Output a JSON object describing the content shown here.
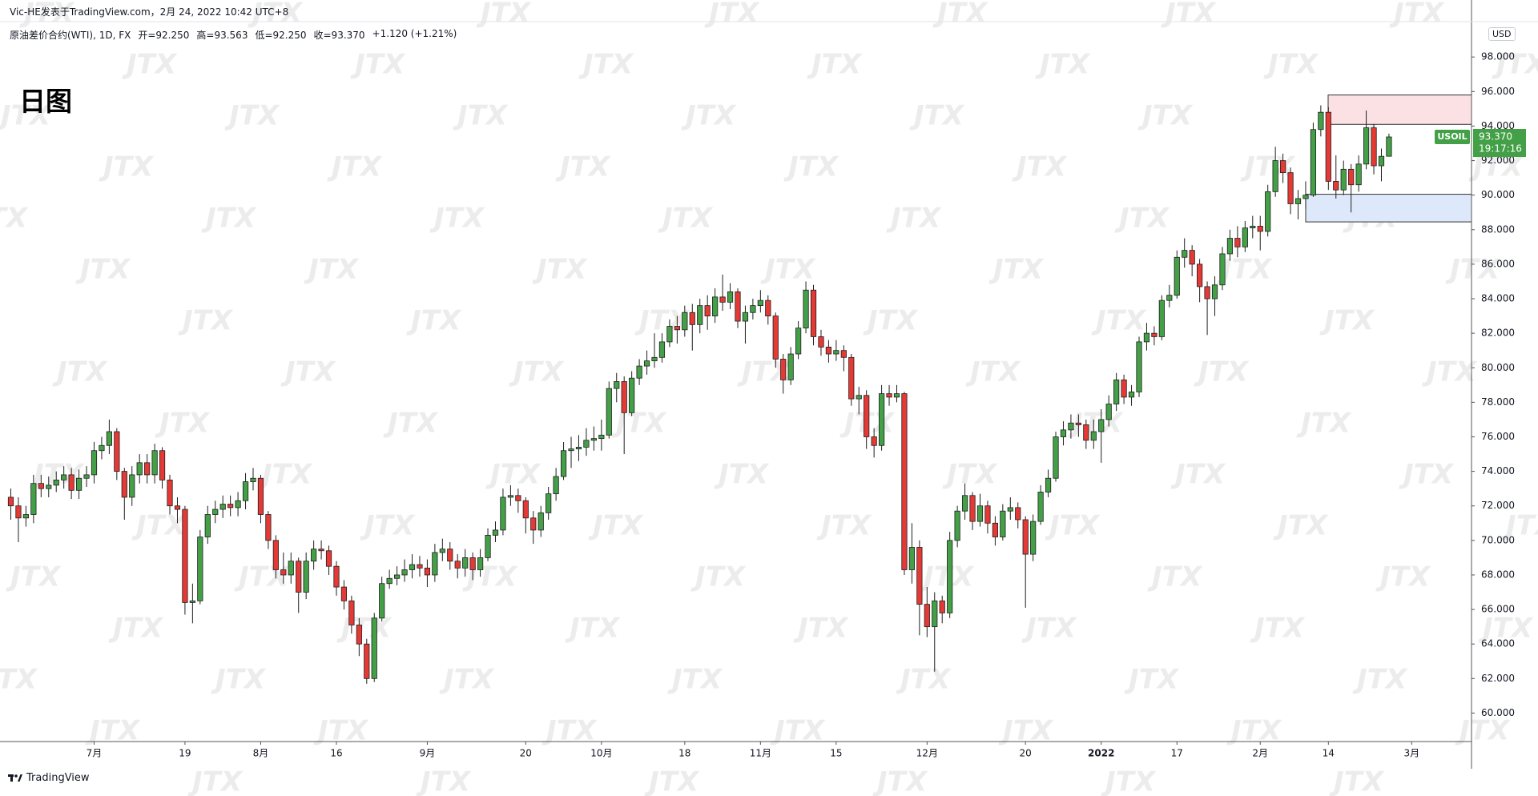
{
  "header": {
    "author_line": "Vic-HE发表于TradingView.com，2月 24, 2022 10:42 UTC+8",
    "symbol": "原油差价合约(WTI), 1D, FX",
    "ohlc_legend": [
      "开=92.250",
      "高=93.563",
      "低=92.250",
      "收=93.370",
      "+1.120 (+1.21%)"
    ]
  },
  "chart_data": {
    "type": "candlestick",
    "title": "日图",
    "currency": "USD",
    "watermark": "JTX",
    "symbol_tag": "USOIL",
    "last_price_label": "93.370",
    "countdown": "19:17:16",
    "up_color": "#43a047",
    "down_color": "#e53935",
    "wick_color": "#1f1f1f",
    "grid": false,
    "ylim": [
      58.35,
      100.05
    ],
    "yticks": [
      {
        "value": 60,
        "label": "60.000"
      },
      {
        "value": 62,
        "label": "62.000"
      },
      {
        "value": 64,
        "label": "64.000"
      },
      {
        "value": 66,
        "label": "66.000"
      },
      {
        "value": 68,
        "label": "68.000"
      },
      {
        "value": 70,
        "label": "70.000"
      },
      {
        "value": 72,
        "label": "72.000"
      },
      {
        "value": 74,
        "label": "74.000"
      },
      {
        "value": 76,
        "label": "76.000"
      },
      {
        "value": 78,
        "label": "78.000"
      },
      {
        "value": 80,
        "label": "80.000"
      },
      {
        "value": 82,
        "label": "82.000"
      },
      {
        "value": 84,
        "label": "84.000"
      },
      {
        "value": 86,
        "label": "86.000"
      },
      {
        "value": 88,
        "label": "88.000"
      },
      {
        "value": 90,
        "label": "90.000"
      },
      {
        "value": 92,
        "label": "92.000"
      },
      {
        "value": 94,
        "label": "94.000"
      },
      {
        "value": 96,
        "label": "96.000"
      },
      {
        "value": 98,
        "label": "98.000"
      }
    ],
    "zones": [
      {
        "top": 95.8,
        "bottom": 94.1,
        "color": "#fbe1e3"
      },
      {
        "top": 90.05,
        "bottom": 88.45,
        "color": "#dde8fa"
      }
    ],
    "categories": [
      null,
      null,
      null,
      null,
      null,
      null,
      null,
      null,
      null,
      null,
      null,
      "7月",
      null,
      null,
      null,
      null,
      null,
      null,
      null,
      null,
      null,
      null,
      null,
      "19",
      null,
      null,
      null,
      null,
      null,
      null,
      null,
      null,
      null,
      "8月",
      null,
      null,
      null,
      null,
      null,
      null,
      null,
      null,
      null,
      "16",
      null,
      null,
      null,
      null,
      null,
      null,
      null,
      null,
      null,
      null,
      null,
      "9月",
      null,
      null,
      null,
      null,
      null,
      null,
      null,
      null,
      null,
      null,
      null,
      null,
      "20",
      null,
      null,
      null,
      null,
      null,
      null,
      null,
      null,
      null,
      "10月",
      null,
      null,
      null,
      null,
      null,
      null,
      null,
      null,
      null,
      null,
      "18",
      null,
      null,
      null,
      null,
      null,
      null,
      null,
      null,
      null,
      "11月",
      null,
      null,
      null,
      null,
      null,
      null,
      null,
      null,
      null,
      "15",
      null,
      null,
      null,
      null,
      null,
      null,
      null,
      null,
      null,
      null,
      null,
      "12月",
      null,
      null,
      null,
      null,
      null,
      null,
      null,
      null,
      null,
      null,
      null,
      null,
      "20",
      null,
      null,
      null,
      null,
      null,
      null,
      null,
      null,
      null,
      "2022",
      null,
      null,
      null,
      null,
      null,
      null,
      null,
      null,
      null,
      "17",
      null,
      null,
      null,
      null,
      null,
      null,
      null,
      null,
      null,
      null,
      "2月",
      null,
      null,
      null,
      null,
      null,
      null,
      null,
      null,
      "14",
      null,
      null,
      null,
      null,
      null,
      null,
      null,
      null,
      null,
      null,
      "3月"
    ],
    "open": [
      72.5,
      72.0,
      71.3,
      71.5,
      73.3,
      73.0,
      73.2,
      73.5,
      73.8,
      72.9,
      73.6,
      73.8,
      75.2,
      75.5,
      76.3,
      74.0,
      72.5,
      73.8,
      74.5,
      73.8,
      75.2,
      73.5,
      72.0,
      71.8,
      66.4,
      66.5,
      70.2,
      71.5,
      71.8,
      72.1,
      71.9,
      72.3,
      73.4,
      73.6,
      71.5,
      70.0,
      68.3,
      68.0,
      68.8,
      67.0,
      68.8,
      69.5,
      69.4,
      68.5,
      67.3,
      66.5,
      65.1,
      64.0,
      62.0,
      65.5,
      67.5,
      67.8,
      68.0,
      68.3,
      68.6,
      68.4,
      68.0,
      69.3,
      69.5,
      68.8,
      68.4,
      69.0,
      68.3,
      69.0,
      70.3,
      70.6,
      72.5,
      72.6,
      72.3,
      71.3,
      70.6,
      71.6,
      72.7,
      73.7,
      75.2,
      75.3,
      75.4,
      75.8,
      75.9,
      76.1,
      78.8,
      79.2,
      77.4,
      79.4,
      80.1,
      80.4,
      80.6,
      81.5,
      82.4,
      82.2,
      83.2,
      82.5,
      83.6,
      83.0,
      84.1,
      83.8,
      84.4,
      82.7,
      83.2,
      83.6,
      83.9,
      83.0,
      80.5,
      79.3,
      80.8,
      82.3,
      84.5,
      81.8,
      81.2,
      80.8,
      81.0,
      80.6,
      78.2,
      78.4,
      76.0,
      75.5,
      78.5,
      78.3,
      78.5,
      68.3,
      69.6,
      66.3,
      65.0,
      66.5,
      65.8,
      70.0,
      71.7,
      72.6,
      71.1,
      72.0,
      71.0,
      70.2,
      71.7,
      71.9,
      71.2,
      69.2,
      71.1,
      72.8,
      73.6,
      76.0,
      76.4,
      76.8,
      76.7,
      75.8,
      76.3,
      77.0,
      77.9,
      79.3,
      78.3,
      78.6,
      81.5,
      82.0,
      81.8,
      83.9,
      84.2,
      86.4,
      86.8,
      86.0,
      84.7,
      84.0,
      84.8,
      86.6,
      87.5,
      87.0,
      88.1,
      88.2,
      87.9,
      90.2,
      92.0,
      91.3,
      89.5,
      89.8,
      90.0,
      93.8,
      94.8,
      90.8,
      90.3,
      91.5,
      90.6,
      91.8,
      93.9,
      91.7,
      92.25,
      null,
      null,
      null
    ],
    "high": [
      73.0,
      72.5,
      72.0,
      73.8,
      73.8,
      73.7,
      74.0,
      74.3,
      74.2,
      74.1,
      74.3,
      75.7,
      76.0,
      77.0,
      76.5,
      74.2,
      74.3,
      75.0,
      75.0,
      75.6,
      75.4,
      73.8,
      72.5,
      72.0,
      67.5,
      70.6,
      72.0,
      72.3,
      72.6,
      72.6,
      72.8,
      73.9,
      74.2,
      73.8,
      71.7,
      70.3,
      69.3,
      69.3,
      69.0,
      69.3,
      70.0,
      70.0,
      69.7,
      68.8,
      67.7,
      66.8,
      65.5,
      64.3,
      65.8,
      67.9,
      68.3,
      68.5,
      68.9,
      69.2,
      69.1,
      68.9,
      69.8,
      70.1,
      69.9,
      69.2,
      69.5,
      69.3,
      69.5,
      70.7,
      71.1,
      73.0,
      73.2,
      73.0,
      72.5,
      71.7,
      72.0,
      73.1,
      74.2,
      75.7,
      76.0,
      76.1,
      76.5,
      76.6,
      77.0,
      79.2,
      79.7,
      79.5,
      79.8,
      80.5,
      81.0,
      82.0,
      82.0,
      82.8,
      83.0,
      83.6,
      83.7,
      84.0,
      84.2,
      84.6,
      85.4,
      84.9,
      84.6,
      83.6,
      84.0,
      84.5,
      84.2,
      83.2,
      80.8,
      81.2,
      82.7,
      85.0,
      84.8,
      82.2,
      81.6,
      81.6,
      81.3,
      80.8,
      78.9,
      78.7,
      76.5,
      79.0,
      79.0,
      79.0,
      78.6,
      71.0,
      70.0,
      67.3,
      67.0,
      66.8,
      70.5,
      72.0,
      73.3,
      72.8,
      72.7,
      72.3,
      71.4,
      72.1,
      72.5,
      72.2,
      71.4,
      71.5,
      73.2,
      74.1,
      76.3,
      76.9,
      77.3,
      77.3,
      77.0,
      77.0,
      77.6,
      78.4,
      79.7,
      79.6,
      79.0,
      81.8,
      82.6,
      82.4,
      84.2,
      84.8,
      86.8,
      87.5,
      87.1,
      86.3,
      85.0,
      85.3,
      87.0,
      88.0,
      88.2,
      88.5,
      88.8,
      88.8,
      90.6,
      92.8,
      92.4,
      91.6,
      90.3,
      90.8,
      94.2,
      95.2,
      95.1,
      92.3,
      92.0,
      91.8,
      92.3,
      94.9,
      94.1,
      92.7,
      93.563,
      null,
      null,
      null
    ],
    "low": [
      71.2,
      69.9,
      70.8,
      71.0,
      72.5,
      72.5,
      72.8,
      73.0,
      72.4,
      72.4,
      73.1,
      73.3,
      74.7,
      75.0,
      73.5,
      71.2,
      72.0,
      73.3,
      73.3,
      73.3,
      73.0,
      71.5,
      71.0,
      65.7,
      65.2,
      66.3,
      69.8,
      71.0,
      71.3,
      71.4,
      71.4,
      71.8,
      72.9,
      71.0,
      69.5,
      67.8,
      67.5,
      67.5,
      65.8,
      66.6,
      68.3,
      68.9,
      68.0,
      66.8,
      66.0,
      64.6,
      63.3,
      61.7,
      61.8,
      65.3,
      67.2,
      67.4,
      67.6,
      67.8,
      67.9,
      67.3,
      67.6,
      68.8,
      68.3,
      67.8,
      67.9,
      67.7,
      67.9,
      68.8,
      69.9,
      70.3,
      72.0,
      71.6,
      70.4,
      69.8,
      70.2,
      71.2,
      72.3,
      73.5,
      74.2,
      74.6,
      74.9,
      75.2,
      75.2,
      75.9,
      78.0,
      75.0,
      77.2,
      79.0,
      79.6,
      80.0,
      80.3,
      81.2,
      81.4,
      81.8,
      81.0,
      82.0,
      82.2,
      82.6,
      83.3,
      83.4,
      82.3,
      81.4,
      82.8,
      83.2,
      82.5,
      80.0,
      78.5,
      79.0,
      80.5,
      82.0,
      81.3,
      80.7,
      80.3,
      80.4,
      79.8,
      77.8,
      77.3,
      75.3,
      74.8,
      75.2,
      77.8,
      78.0,
      68.0,
      67.5,
      64.5,
      64.4,
      62.4,
      65.2,
      65.5,
      69.6,
      71.2,
      70.6,
      70.8,
      70.4,
      69.7,
      70.0,
      71.2,
      70.7,
      66.1,
      68.8,
      70.9,
      72.5,
      73.4,
      75.5,
      75.9,
      76.0,
      75.3,
      75.3,
      74.5,
      76.6,
      77.5,
      77.9,
      77.8,
      78.3,
      81.0,
      81.3,
      81.6,
      83.5,
      84.0,
      85.8,
      85.3,
      83.8,
      81.9,
      83.0,
      84.5,
      86.2,
      86.4,
      86.7,
      87.5,
      86.8,
      87.6,
      89.9,
      90.7,
      88.9,
      88.6,
      89.2,
      89.9,
      93.4,
      90.3,
      89.8,
      90.0,
      89.0,
      90.2,
      91.5,
      91.2,
      90.8,
      92.25,
      null,
      null,
      null
    ],
    "close": [
      72.0,
      71.3,
      71.5,
      73.3,
      73.0,
      73.2,
      73.5,
      73.8,
      72.9,
      73.6,
      73.8,
      75.2,
      75.5,
      76.3,
      74.0,
      72.5,
      73.8,
      74.5,
      73.8,
      75.2,
      73.5,
      72.0,
      71.8,
      66.4,
      66.5,
      70.2,
      71.5,
      71.8,
      72.1,
      71.9,
      72.3,
      73.4,
      73.6,
      71.5,
      70.0,
      68.3,
      68.0,
      68.8,
      67.0,
      68.8,
      69.5,
      69.4,
      68.5,
      67.3,
      66.5,
      65.1,
      64.0,
      62.0,
      65.5,
      67.5,
      67.8,
      68.0,
      68.3,
      68.6,
      68.4,
      68.0,
      69.3,
      69.5,
      68.8,
      68.4,
      69.0,
      68.3,
      69.0,
      70.3,
      70.6,
      72.5,
      72.6,
      72.3,
      71.3,
      70.6,
      71.6,
      72.7,
      73.7,
      75.2,
      75.3,
      75.4,
      75.8,
      75.9,
      76.1,
      78.8,
      79.2,
      77.4,
      79.4,
      80.1,
      80.4,
      80.6,
      81.5,
      82.4,
      82.2,
      83.2,
      82.5,
      83.6,
      83.0,
      84.1,
      83.8,
      84.4,
      82.7,
      83.2,
      83.6,
      83.9,
      83.0,
      80.5,
      79.3,
      80.8,
      82.3,
      84.5,
      81.8,
      81.2,
      80.8,
      81.0,
      80.6,
      78.2,
      78.4,
      76.0,
      75.5,
      78.5,
      78.3,
      78.5,
      68.3,
      69.6,
      66.3,
      65.0,
      66.5,
      65.8,
      70.0,
      71.7,
      72.6,
      71.1,
      72.0,
      71.0,
      70.2,
      71.7,
      71.9,
      71.2,
      69.2,
      71.1,
      72.8,
      73.6,
      76.0,
      76.4,
      76.8,
      76.7,
      75.8,
      76.3,
      77.0,
      77.9,
      79.3,
      78.3,
      78.6,
      81.5,
      82.0,
      81.8,
      83.9,
      84.2,
      86.4,
      86.8,
      86.0,
      84.7,
      84.0,
      84.8,
      86.6,
      87.5,
      87.0,
      88.1,
      88.2,
      87.9,
      90.2,
      92.0,
      91.3,
      89.5,
      89.8,
      90.0,
      93.8,
      94.8,
      90.8,
      90.3,
      91.5,
      90.6,
      91.8,
      93.9,
      91.7,
      92.25,
      93.37,
      null,
      null,
      null
    ]
  },
  "footer": {
    "brand": "TradingView"
  }
}
